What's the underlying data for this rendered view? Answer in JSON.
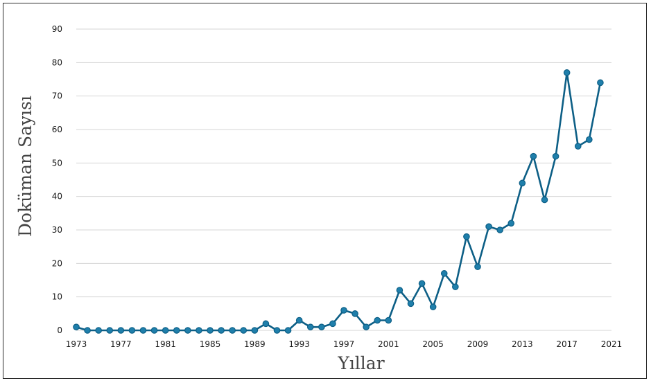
{
  "chart_data": {
    "type": "line",
    "title": "",
    "xlabel": "Yıllar",
    "ylabel": "Doküman Sayısı",
    "ylim": [
      0,
      90
    ],
    "y_ticks": [
      "0",
      "10",
      "20",
      "30",
      "40",
      "50",
      "60",
      "70",
      "80",
      "90"
    ],
    "x_ticks": [
      "1973",
      "1977",
      "1981",
      "1985",
      "1989",
      "1993",
      "1997",
      "2001",
      "2005",
      "2009",
      "2013",
      "2017",
      "2021"
    ],
    "grid": true,
    "legend": "none",
    "colors": {
      "line": "#0d5f86",
      "marker": "#1f7fab",
      "grid": "#d4d4d4"
    },
    "series": [
      {
        "x": [
          1973,
          1974,
          1975,
          1976,
          1977,
          1978,
          1979,
          1980,
          1981,
          1982,
          1983,
          1984,
          1985,
          1986,
          1987,
          1988,
          1989,
          1990,
          1991,
          1992,
          1993,
          1994,
          1995,
          1996,
          1997,
          1998,
          1999,
          2000,
          2001,
          2002,
          2003,
          2004,
          2005,
          2006,
          2007,
          2008,
          2009,
          2010,
          2011,
          2012,
          2013,
          2014,
          2015,
          2016,
          2017,
          2018,
          2019,
          2020
        ],
        "values": [
          1,
          0,
          0,
          0,
          0,
          0,
          0,
          0,
          0,
          0,
          0,
          0,
          0,
          0,
          0,
          0,
          0,
          2,
          0,
          0,
          3,
          1,
          1,
          2,
          6,
          5,
          1,
          3,
          3,
          12,
          8,
          14,
          7,
          17,
          13,
          28,
          19,
          31,
          30,
          32,
          44,
          52,
          39,
          52,
          77,
          55,
          57,
          74
        ]
      }
    ]
  }
}
